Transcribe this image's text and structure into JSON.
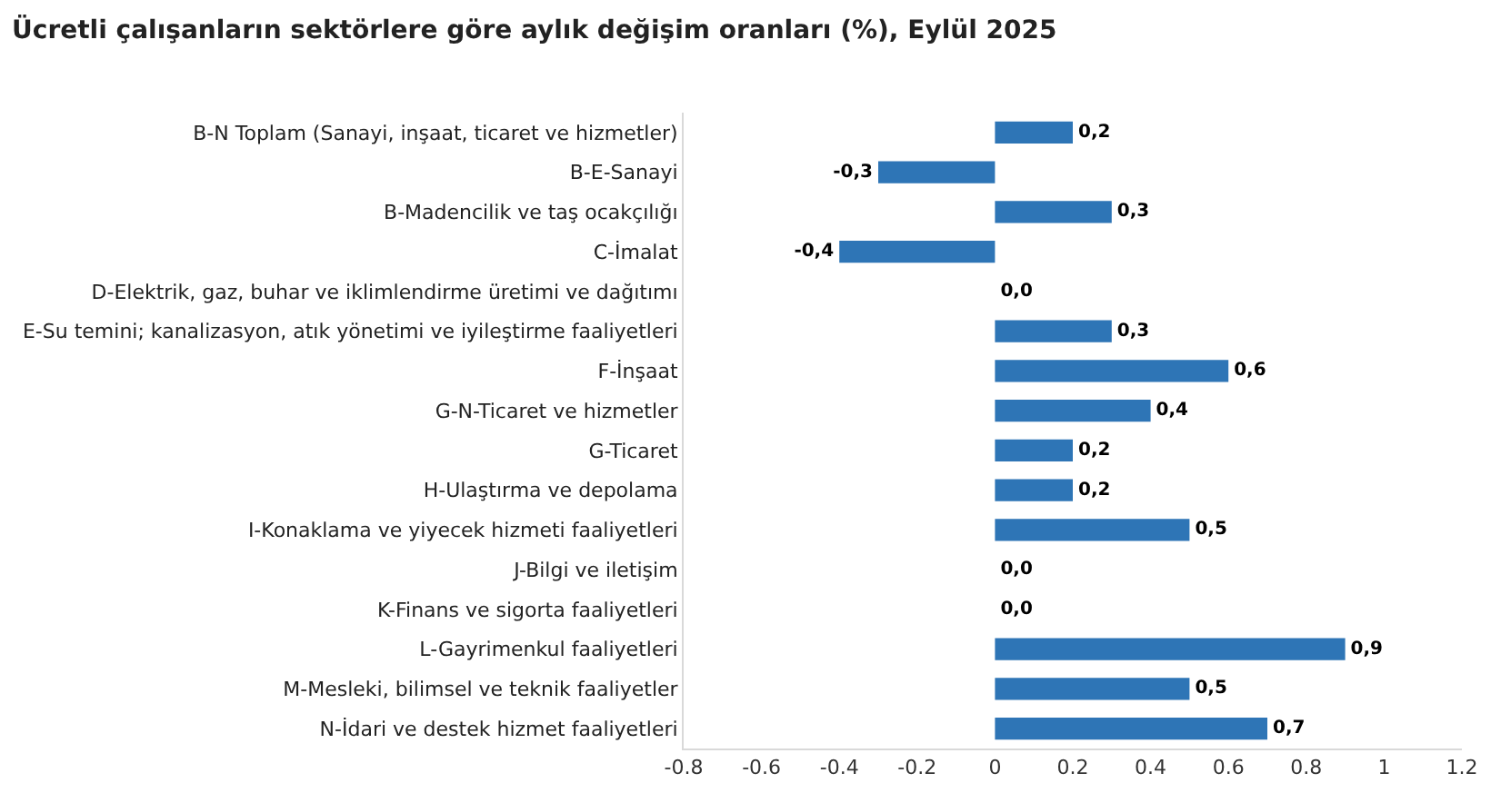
{
  "chart_data": {
    "type": "bar",
    "orientation": "horizontal",
    "title": "Ücretli çalışanların sektörlere göre aylık değişim oranları (%), Eylül 2025",
    "categories": [
      "B-N Toplam (Sanayi, inşaat, ticaret ve hizmetler)",
      "B-E-Sanayi",
      "B-Madencilik ve taş ocakçılığı",
      "C-İmalat",
      "D-Elektrik, gaz, buhar ve iklimlendirme üretimi ve dağıtımı",
      "E-Su temini; kanalizasyon, atık yönetimi ve iyileştirme faaliyetleri",
      "F-İnşaat",
      "G-N-Ticaret ve hizmetler",
      "G-Ticaret",
      "H-Ulaştırma ve depolama",
      "I-Konaklama ve yiyecek hizmeti faaliyetleri",
      "J-Bilgi ve iletişim",
      "K-Finans ve sigorta faaliyetleri",
      "L-Gayrimenkul faaliyetleri",
      "M-Mesleki, bilimsel ve teknik faaliyetler",
      "N-İdari ve destek hizmet faaliyetleri"
    ],
    "values": [
      0.2,
      -0.3,
      0.3,
      -0.4,
      0.0,
      0.3,
      0.6,
      0.4,
      0.2,
      0.2,
      0.5,
      0.0,
      0.0,
      0.9,
      0.5,
      0.7
    ],
    "value_labels": [
      "0,2",
      "-0,3",
      "0,3",
      "-0,4",
      "0,0",
      "0,3",
      "0,6",
      "0,4",
      "0,2",
      "0,2",
      "0,5",
      "0,0",
      "0,0",
      "0,9",
      "0,5",
      "0,7"
    ],
    "color": "#2e75b6",
    "xlim": [
      -0.8,
      1.2
    ],
    "xticks": [
      -0.8,
      -0.6,
      -0.4,
      -0.2,
      0,
      0.2,
      0.4,
      0.6,
      0.8,
      1,
      1.2
    ],
    "grid": false
  }
}
